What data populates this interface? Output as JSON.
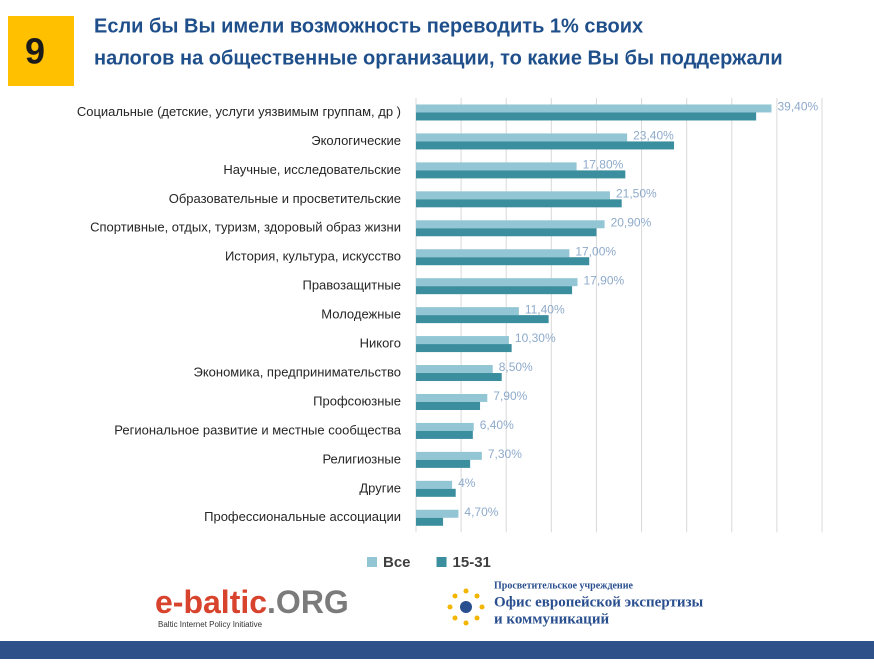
{
  "slide_number": "9",
  "chart_data": {
    "type": "hbar",
    "title_lines": [
      "Если бы Вы имели возможность переводить 1% своих",
      "налогов на общественные организации, то какие Вы бы поддержали"
    ],
    "categories": [
      "Социальные (детские, услуги уязвимым группам, др )",
      "Экологические",
      "Научные, исследовательские",
      "Образовательные и просветительские",
      "Спортивные, отдых, туризм, здоровый образ жизни",
      "История, культура, искусство",
      "Правозащитные",
      "Молодежные",
      "Никого",
      "Экономика, предпринимательство",
      "Профсоюзные",
      "Региональное развитие и местные сообщества",
      "Религиозные",
      "Другие",
      "Профессиональные ассоциации"
    ],
    "series": [
      {
        "name": "Все",
        "color": "#93c6d4",
        "values": [
          39.4,
          23.4,
          17.8,
          21.5,
          20.9,
          17.0,
          17.9,
          11.4,
          10.3,
          8.5,
          7.9,
          6.4,
          7.3,
          4,
          4.7
        ],
        "value_labels": [
          "39,40%",
          "23,40%",
          "17,80%",
          "21,50%",
          "20,90%",
          "17,00%",
          "17,90%",
          "11,40%",
          "10,30%",
          "8,50%",
          "7,90%",
          "6,40%",
          "7,30%",
          "4%",
          "4,70%"
        ]
      },
      {
        "name": "15-31",
        "color": "#3a8e9e",
        "values": [
          37.7,
          28.6,
          23.2,
          22.8,
          20.0,
          19.2,
          17.3,
          14.7,
          10.6,
          9.5,
          7.1,
          6.3,
          6.0,
          4.4,
          3.0
        ]
      }
    ],
    "xlim": [
      0,
      45
    ],
    "xticks": [
      0,
      5,
      10,
      15,
      20,
      25,
      30,
      35,
      40,
      45
    ],
    "grid": true,
    "legend": "bottom"
  },
  "footer": {
    "left_name": "e-baltic",
    "left_suffix": ".ORG",
    "left_tagline": "Baltic Internet Policy Initiative",
    "right_lines": [
      "Просветительское учреждение",
      "Офис европейской экспертизы",
      "и коммуникаций"
    ]
  }
}
